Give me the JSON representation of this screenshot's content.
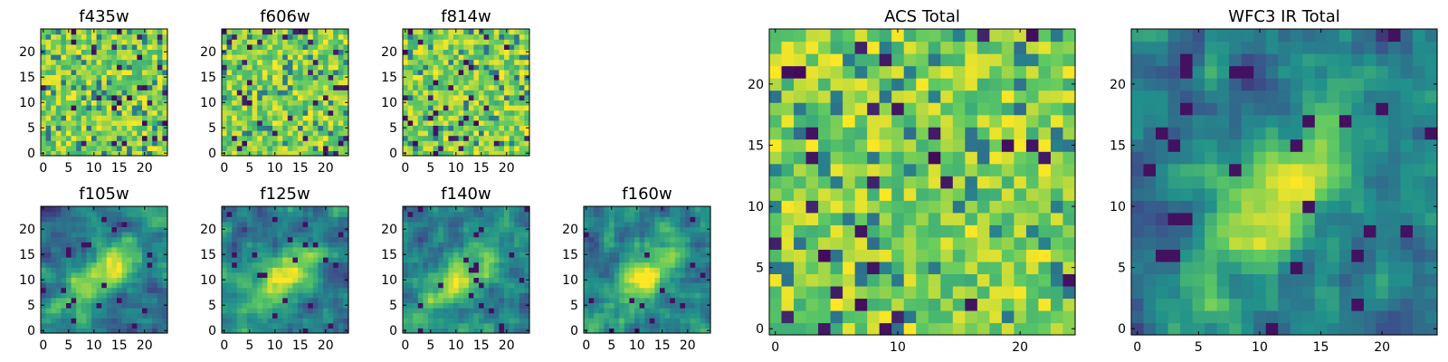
{
  "figure": {
    "colormap": "viridis",
    "cmap_stops": [
      "#440154",
      "#3b528b",
      "#21918c",
      "#5ec962",
      "#fde725"
    ]
  },
  "chart_data": [
    {
      "type": "heatmap",
      "title": "f435w",
      "grid_size": 25,
      "xticks": [
        0,
        5,
        10,
        15,
        20
      ],
      "yticks": [
        0,
        5,
        10,
        15,
        20
      ],
      "xlim": [
        0,
        24
      ],
      "ylim": [
        0,
        24
      ],
      "pattern": "noise"
    },
    {
      "type": "heatmap",
      "title": "f606w",
      "grid_size": 25,
      "xticks": [
        0,
        5,
        10,
        15,
        20
      ],
      "yticks": [
        0,
        5,
        10,
        15,
        20
      ],
      "xlim": [
        0,
        24
      ],
      "ylim": [
        0,
        24
      ],
      "pattern": "noise"
    },
    {
      "type": "heatmap",
      "title": "f814w",
      "grid_size": 25,
      "xticks": [
        0,
        5,
        10,
        15,
        20
      ],
      "yticks": [
        0,
        5,
        10,
        15,
        20
      ],
      "xlim": [
        0,
        24
      ],
      "ylim": [
        0,
        24
      ],
      "pattern": "noise"
    },
    {
      "type": "heatmap",
      "title": "f105w",
      "grid_size": 25,
      "xticks": [
        0,
        5,
        10,
        15,
        20
      ],
      "yticks": [
        0,
        5,
        10,
        15,
        20
      ],
      "xlim": [
        0,
        24
      ],
      "ylim": [
        0,
        24
      ],
      "pattern": "diagonal_source"
    },
    {
      "type": "heatmap",
      "title": "f125w",
      "grid_size": 25,
      "xticks": [
        0,
        5,
        10,
        15,
        20
      ],
      "yticks": [
        0,
        5,
        10,
        15,
        20
      ],
      "xlim": [
        0,
        24
      ],
      "ylim": [
        0,
        24
      ],
      "pattern": "diagonal_source"
    },
    {
      "type": "heatmap",
      "title": "f140w",
      "grid_size": 25,
      "xticks": [
        0,
        5,
        10,
        15,
        20
      ],
      "yticks": [
        0,
        5,
        10,
        15,
        20
      ],
      "xlim": [
        0,
        24
      ],
      "ylim": [
        0,
        24
      ],
      "pattern": "diagonal_source"
    },
    {
      "type": "heatmap",
      "title": "f160w",
      "grid_size": 25,
      "xticks": [
        0,
        5,
        10,
        15,
        20
      ],
      "yticks": [
        0,
        5,
        10,
        15,
        20
      ],
      "xlim": [
        0,
        24
      ],
      "ylim": [
        0,
        24
      ],
      "pattern": "diagonal_source"
    },
    {
      "type": "heatmap",
      "title": "ACS Total",
      "grid_size": 25,
      "xticks": [
        0,
        10,
        20
      ],
      "yticks": [
        0,
        5,
        10,
        15,
        20
      ],
      "xlim": [
        0,
        24
      ],
      "ylim": [
        0,
        24
      ],
      "pattern": "noise"
    },
    {
      "type": "heatmap",
      "title": "WFC3 IR Total",
      "grid_size": 25,
      "xticks": [
        0,
        5,
        10,
        15,
        20
      ],
      "yticks": [
        0,
        5,
        10,
        15,
        20
      ],
      "xlim": [
        0,
        24
      ],
      "ylim": [
        0,
        24
      ],
      "pattern": "diagonal_source"
    }
  ]
}
